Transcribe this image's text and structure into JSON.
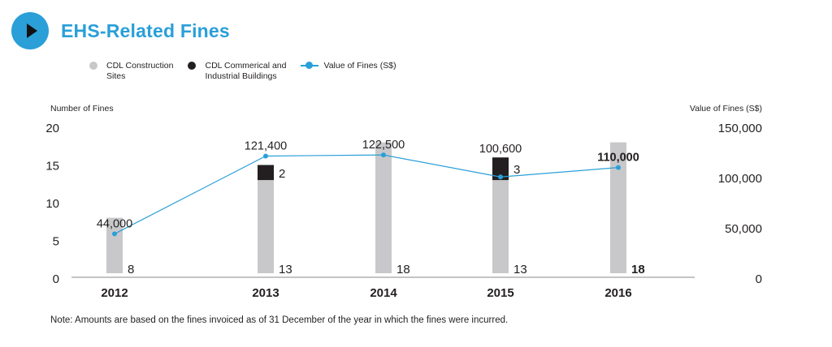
{
  "header": {
    "title": "EHS-Related Fines",
    "play_icon": "play-icon"
  },
  "legend": [
    {
      "label": "CDL Construction\nSites",
      "color": "#c8c8ca",
      "shape": "circle"
    },
    {
      "label": "CDL Commerical and\nIndustrial Buildings",
      "color": "#231f20",
      "shape": "circle"
    },
    {
      "label": "Value of Fines (S$)",
      "color": "#2a9fd8",
      "shape": "line-marker"
    }
  ],
  "note": "Note: Amounts are based on the fines invoiced as of 31 December of the year in which the fines were incurred.",
  "colors": {
    "accent": "#2a9fd8",
    "construction": "#c8c8ca",
    "commercial": "#231f20",
    "axis": "#888888"
  },
  "chart_data": {
    "type": "bar",
    "title": "EHS-Related Fines",
    "categories": [
      "2012",
      "2013",
      "2014",
      "2015",
      "2016"
    ],
    "highlight_category": "2016",
    "ylabel": "Number of Fines",
    "y2label": "Value of Fines (S$)",
    "ylim": [
      0,
      20
    ],
    "y2lim": [
      0,
      150000
    ],
    "yticks": [
      "0",
      "5",
      "10",
      "15",
      "20"
    ],
    "y2ticks": [
      "0",
      "50,000",
      "100,000",
      "150,000"
    ],
    "grid": false,
    "legend_position": "top-left",
    "series": [
      {
        "name": "CDL Construction Sites",
        "type": "bar",
        "stacked": true,
        "values": [
          8,
          13,
          18,
          13,
          18
        ],
        "labels": [
          "8",
          "13",
          "18",
          "13",
          "18"
        ]
      },
      {
        "name": "CDL Commerical and Industrial Buildings",
        "type": "bar",
        "stacked": true,
        "values": [
          0,
          2,
          0,
          3,
          0
        ],
        "labels": [
          "",
          "2",
          "",
          "3",
          ""
        ]
      },
      {
        "name": "Value of Fines (S$)",
        "type": "line",
        "axis": "right",
        "values": [
          44000,
          121400,
          122500,
          100600,
          110000
        ],
        "labels": [
          "44,000",
          "121,400",
          "122,500",
          "100,600",
          "110,000"
        ]
      }
    ]
  }
}
